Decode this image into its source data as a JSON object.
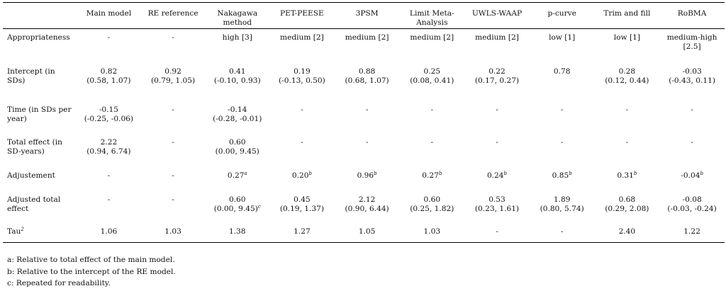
{
  "columns": [
    "",
    "Main model",
    "RE reference",
    "Nakagawa method",
    "PET-PEESE",
    "3PSM",
    "Limit Meta-Analysis",
    "UWLS-WAAP",
    "p-curve",
    "Trim and fill",
    "RoBMA"
  ],
  "rows": {
    "appropriateness": {
      "label": "Appropriateness",
      "cells": [
        "-",
        "-",
        "high [3]",
        "medium [2]",
        "medium [2]",
        "medium [2]",
        "medium [2]",
        "low [1]",
        "low [1]",
        "medium-high [2.5]"
      ]
    },
    "intercept": {
      "label": "Intercept (in SDs)",
      "est": [
        "0.82",
        "0.92",
        "0.41",
        "0.19",
        "0.88",
        "0.25",
        "0.22",
        "0.78",
        "0.28",
        "-0.03"
      ],
      "ci": [
        "(0.58, 1.07)",
        "(0.79, 1.05)",
        "(-0.10, 0.93)",
        "(-0.13, 0.50)",
        "(0.68, 1.07)",
        "(0.08, 0.41)",
        "(0.17, 0.27)",
        "",
        "(0.12, 0.44)",
        "(-0.43, 0.11)"
      ]
    },
    "time": {
      "label": "Time (in SDs per year)",
      "est": [
        "-0.15",
        "-",
        "-0.14",
        "-",
        "-",
        "-",
        "-",
        "-",
        "-",
        "-"
      ],
      "ci": [
        "(-0.25, -0.06)",
        "",
        "(-0.28, -0.01)",
        "",
        "",
        "",
        "",
        "",
        "",
        ""
      ]
    },
    "total_effect": {
      "label": "Total effect (in SD-years)",
      "est": [
        "2.22",
        "-",
        "0.60",
        "-",
        "-",
        "-",
        "-",
        "-",
        "-",
        "-"
      ],
      "ci": [
        "(0.94, 6.74)",
        "",
        "(0.00, 9.45)",
        "",
        "",
        "",
        "",
        "",
        "",
        ""
      ]
    },
    "adjustement": {
      "label": "Adjustement",
      "est": [
        "-",
        "-",
        "0.27",
        "0.20",
        "0.96",
        "0.27",
        "0.24",
        "0.85",
        "0.31",
        "-0.04"
      ],
      "sup": [
        "",
        "",
        "a",
        "b",
        "b",
        "b",
        "b",
        "b",
        "b",
        "b"
      ]
    },
    "adjusted_total": {
      "label": "Adjusted total effect",
      "est": [
        "-",
        "-",
        "0.60",
        "0.45",
        "2.12",
        "0.60",
        "0.53",
        "1.89",
        "0.68",
        "-0.08"
      ],
      "ci": [
        "",
        "",
        "(0.00, 9.45)",
        "(0.19, 1.37)",
        "(0.90, 6.44)",
        "(0.25, 1.82)",
        "(0.23, 1.61)",
        "(0.80, 5.74)",
        "(0.29, 2.08)",
        "(-0.03, -0.24)"
      ],
      "ci_sup": [
        "",
        "",
        "c",
        "",
        "",
        "",
        "",
        "",
        "",
        ""
      ]
    },
    "tau2": {
      "label": "Tau",
      "label_sup": "2",
      "cells": [
        "1.06",
        "1.03",
        "1.38",
        "1.27",
        "1.05",
        "1.03",
        "-",
        "-",
        "2.40",
        "1.22"
      ]
    }
  },
  "notes": [
    "a: Relative to total effect of the main model.",
    "b: Relative to the intercept of the RE model.",
    "c: Repeated for readability."
  ]
}
